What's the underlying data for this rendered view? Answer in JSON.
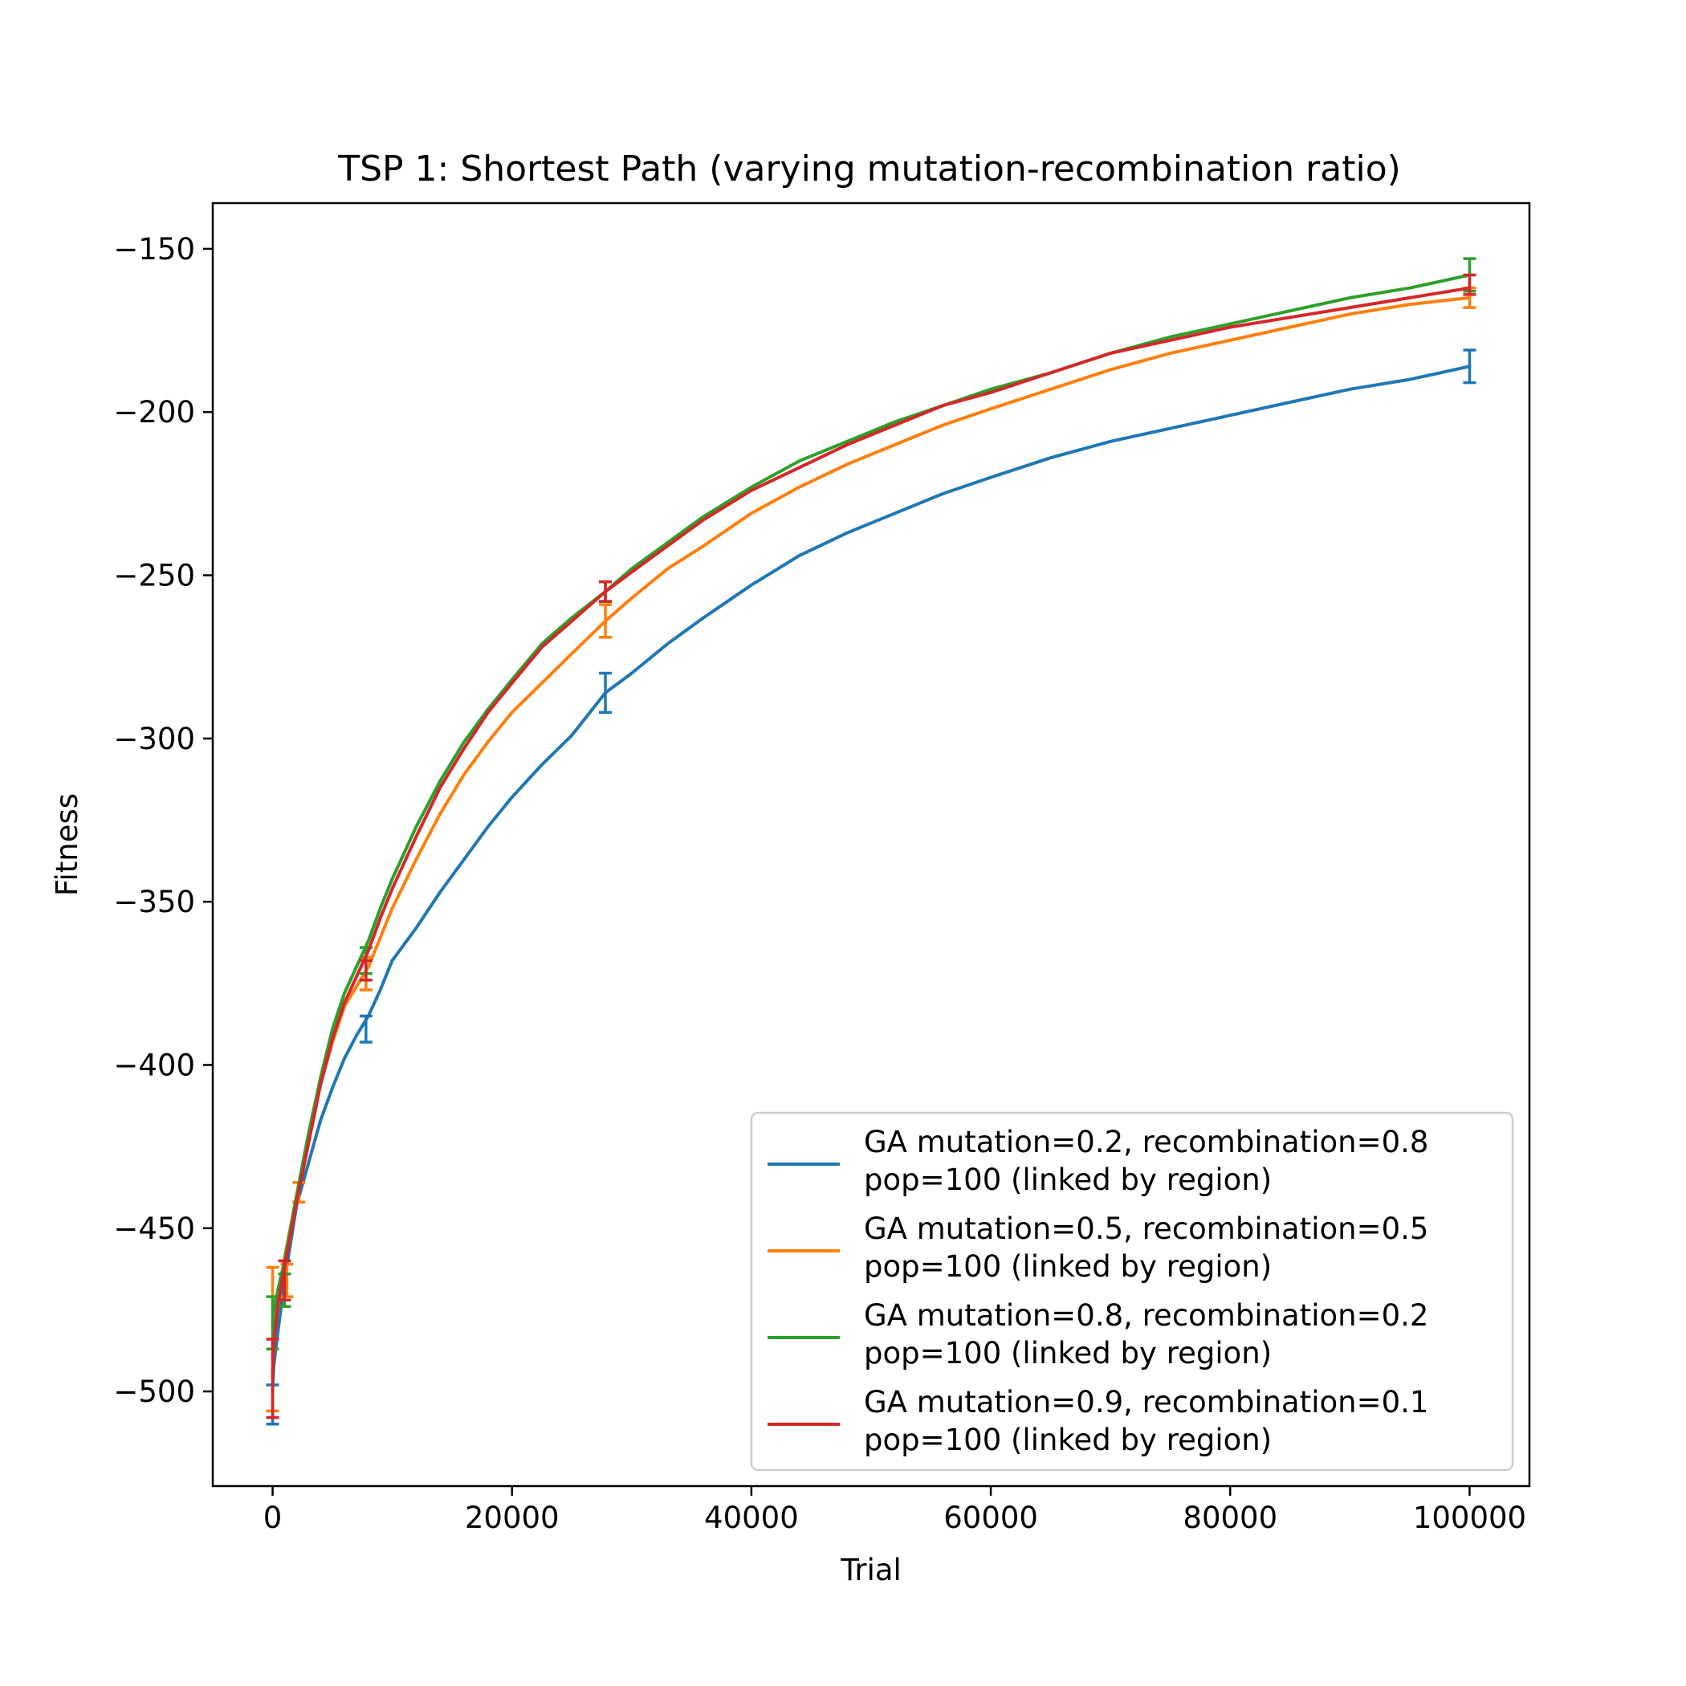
{
  "chart_data": {
    "type": "line",
    "title": "TSP 1: Shortest Path (varying mutation-recombination ratio)",
    "xlabel": "Trial",
    "ylabel": "Fitness",
    "xlim": [
      -5000,
      105000
    ],
    "ylim": [
      -529,
      -136
    ],
    "xticks": [
      0,
      20000,
      40000,
      60000,
      80000,
      100000
    ],
    "xtick_labels": [
      "0",
      "20000",
      "40000",
      "60000",
      "80000",
      "100000"
    ],
    "yticks": [
      -150,
      -200,
      -250,
      -300,
      -350,
      -400,
      -450,
      -500
    ],
    "ytick_labels": [
      "−150",
      "−200",
      "−250",
      "−300",
      "−350",
      "−400",
      "−450",
      "−500"
    ],
    "grid": false,
    "legend_position": "lower right",
    "series": [
      {
        "name": "GA mutation=0.2, recombination=0.8\npop=100 (linked by region)",
        "legend_lines": [
          "GA mutation=0.2, recombination=0.8",
          "pop=100 (linked by region)"
        ],
        "color": "#1f77b4",
        "x": [
          0,
          100,
          500,
          1000,
          2000,
          3000,
          4000,
          5000,
          6000,
          7000,
          8000,
          9000,
          10000,
          12000,
          14000,
          16000,
          18000,
          20000,
          22500,
          25000,
          27800,
          30000,
          33000,
          36000,
          40000,
          44000,
          48000,
          52000,
          56000,
          60000,
          65000,
          70000,
          75000,
          80000,
          85000,
          90000,
          95000,
          100000
        ],
        "y": [
          -500,
          -492,
          -480,
          -466,
          -443,
          -430,
          -417,
          -407,
          -398,
          -391,
          -385,
          -377,
          -368,
          -358,
          -347,
          -337,
          -327,
          -318,
          -308,
          -299,
          -286,
          -280,
          -271,
          -263,
          -253,
          -244,
          -237,
          -231,
          -225,
          -220,
          -214,
          -209,
          -205,
          -201,
          -197,
          -193,
          -190,
          -186
        ],
        "error_bars": [
          {
            "x": 0,
            "y": -504,
            "err": 6
          },
          {
            "x": 7800,
            "y": -389,
            "err": 4
          },
          {
            "x": 27800,
            "y": -286,
            "err": 6
          },
          {
            "x": 100000,
            "y": -186,
            "err": 5
          }
        ]
      },
      {
        "name": "GA mutation=0.5, recombination=0.5\npop=100 (linked by region)",
        "legend_lines": [
          "GA mutation=0.5, recombination=0.5",
          "pop=100 (linked by region)"
        ],
        "color": "#ff7f0e",
        "x": [
          0,
          100,
          500,
          1000,
          2000,
          3000,
          4000,
          5000,
          6000,
          7000,
          8000,
          9000,
          10000,
          12000,
          14000,
          16000,
          18000,
          20000,
          22500,
          25000,
          27800,
          30000,
          33000,
          36000,
          40000,
          44000,
          48000,
          52000,
          56000,
          60000,
          65000,
          70000,
          75000,
          80000,
          85000,
          90000,
          95000,
          100000
        ],
        "y": [
          -490,
          -482,
          -470,
          -459,
          -440,
          -422,
          -406,
          -393,
          -382,
          -376,
          -370,
          -361,
          -352,
          -337,
          -323,
          -311,
          -301,
          -292,
          -283,
          -274,
          -264,
          -257,
          -248,
          -241,
          -231,
          -223,
          -216,
          -210,
          -204,
          -199,
          -193,
          -187,
          -182,
          -178,
          -174,
          -170,
          -167,
          -165
        ],
        "error_bars": [
          {
            "x": 0,
            "y": -484,
            "err": 22
          },
          {
            "x": 1200,
            "y": -466,
            "err": 5
          },
          {
            "x": 2200,
            "y": -439,
            "err": 3
          },
          {
            "x": 7800,
            "y": -372,
            "err": 5
          },
          {
            "x": 27800,
            "y": -264,
            "err": 5
          },
          {
            "x": 100000,
            "y": -165,
            "err": 3
          }
        ]
      },
      {
        "name": "GA mutation=0.8, recombination=0.2\npop=100 (linked by region)",
        "legend_lines": [
          "GA mutation=0.8, recombination=0.2",
          "pop=100 (linked by region)"
        ],
        "color": "#2ca02c",
        "x": [
          0,
          100,
          500,
          1000,
          2000,
          3000,
          4000,
          5000,
          6000,
          7000,
          8000,
          9000,
          10000,
          12000,
          14000,
          16000,
          18000,
          20000,
          22500,
          25000,
          27800,
          30000,
          33000,
          36000,
          40000,
          44000,
          48000,
          52000,
          56000,
          60000,
          65000,
          70000,
          75000,
          80000,
          85000,
          90000,
          95000,
          100000
        ],
        "y": [
          -480,
          -475,
          -468,
          -460,
          -440,
          -421,
          -404,
          -389,
          -378,
          -370,
          -362,
          -352,
          -343,
          -327,
          -313,
          -301,
          -291,
          -282,
          -271,
          -263,
          -255,
          -248,
          -240,
          -232,
          -223,
          -215,
          -209,
          -203,
          -198,
          -193,
          -188,
          -182,
          -177,
          -173,
          -169,
          -165,
          -162,
          -158
        ],
        "error_bars": [
          {
            "x": 0,
            "y": -479,
            "err": 8
          },
          {
            "x": 1000,
            "y": -469,
            "err": 5
          },
          {
            "x": 7800,
            "y": -368,
            "err": 4
          },
          {
            "x": 27800,
            "y": -255,
            "err": 3
          },
          {
            "x": 100000,
            "y": -158,
            "err": 5
          }
        ]
      },
      {
        "name": "GA mutation=0.9, recombination=0.1\npop=100 (linked by region)",
        "legend_lines": [
          "GA mutation=0.9, recombination=0.1",
          "pop=100 (linked by region)"
        ],
        "color": "#d62728",
        "x": [
          0,
          100,
          500,
          1000,
          2000,
          3000,
          4000,
          5000,
          6000,
          7000,
          8000,
          9000,
          10000,
          12000,
          14000,
          16000,
          18000,
          20000,
          22500,
          25000,
          27800,
          30000,
          33000,
          36000,
          40000,
          44000,
          48000,
          52000,
          56000,
          60000,
          65000,
          70000,
          75000,
          80000,
          85000,
          90000,
          95000,
          100000
        ],
        "y": [
          -496,
          -485,
          -472,
          -462,
          -442,
          -424,
          -406,
          -392,
          -381,
          -373,
          -365,
          -355,
          -346,
          -330,
          -315,
          -303,
          -292,
          -283,
          -272,
          -264,
          -255,
          -249,
          -241,
          -233,
          -224,
          -217,
          -210,
          -204,
          -198,
          -194,
          -188,
          -182,
          -178,
          -174,
          -171,
          -168,
          -165,
          -162
        ],
        "error_bars": [
          {
            "x": 0,
            "y": -496,
            "err": 12
          },
          {
            "x": 1000,
            "y": -466,
            "err": 6
          },
          {
            "x": 7800,
            "y": -371,
            "err": 3
          },
          {
            "x": 27800,
            "y": -255,
            "err": 3
          },
          {
            "x": 100000,
            "y": -161,
            "err": 3
          }
        ]
      }
    ]
  }
}
